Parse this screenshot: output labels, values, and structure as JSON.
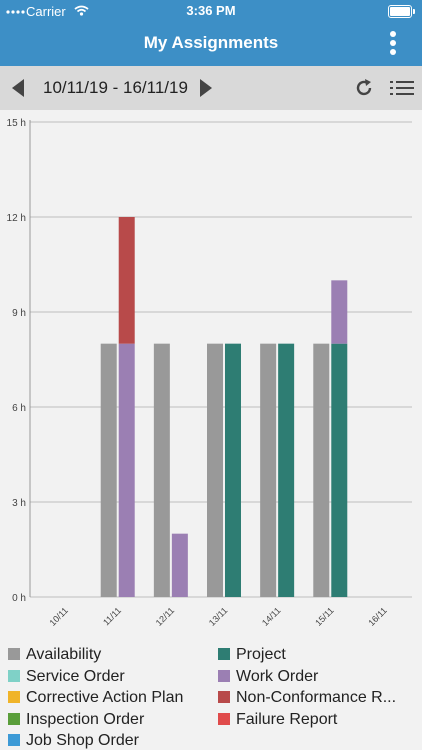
{
  "status": {
    "carrier": "Carrier",
    "time": "3:36 PM"
  },
  "header": {
    "title": "My Assignments"
  },
  "toolbar": {
    "date_range": "10/11/19 - 16/11/19"
  },
  "chart_data": {
    "type": "bar",
    "stacked": true,
    "categories": [
      "10/11",
      "11/11",
      "12/11",
      "13/11",
      "14/11",
      "15/11",
      "16/11"
    ],
    "yticks": [
      "0 h",
      "3 h",
      "6 h",
      "9 h",
      "12 h",
      "15 h"
    ],
    "ylim": [
      0,
      15
    ],
    "series": [
      {
        "name": "Availability",
        "color": "#999999",
        "stack": "a",
        "values": [
          0,
          8,
          8,
          8,
          8,
          8,
          0
        ]
      },
      {
        "name": "Project",
        "color": "#2e7d73",
        "stack": "b",
        "values": [
          0,
          0,
          0,
          8,
          8,
          8,
          0
        ]
      },
      {
        "name": "Work Order",
        "color": "#9b7fb3",
        "stack": "b",
        "values": [
          0,
          8,
          2,
          0,
          0,
          2,
          0
        ]
      },
      {
        "name": "Non-Conformance Report",
        "color": "#b84a4a",
        "stack": "b",
        "values": [
          0,
          4,
          0,
          0,
          0,
          0,
          0
        ]
      }
    ]
  },
  "legend": [
    {
      "label": "Availability",
      "color": "#999999"
    },
    {
      "label": "Project",
      "color": "#2e7d73"
    },
    {
      "label": "Service Order",
      "color": "#7fd1c7"
    },
    {
      "label": "Work Order",
      "color": "#9b7fb3"
    },
    {
      "label": "Corrective Action Plan",
      "color": "#f0b429"
    },
    {
      "label": "Non-Conformance R...",
      "color": "#b84a4a"
    },
    {
      "label": "Inspection Order",
      "color": "#5a9e3a"
    },
    {
      "label": "Failure Report",
      "color": "#e04b4b"
    },
    {
      "label": "Job Shop Order",
      "color": "#3d9ad6"
    }
  ]
}
